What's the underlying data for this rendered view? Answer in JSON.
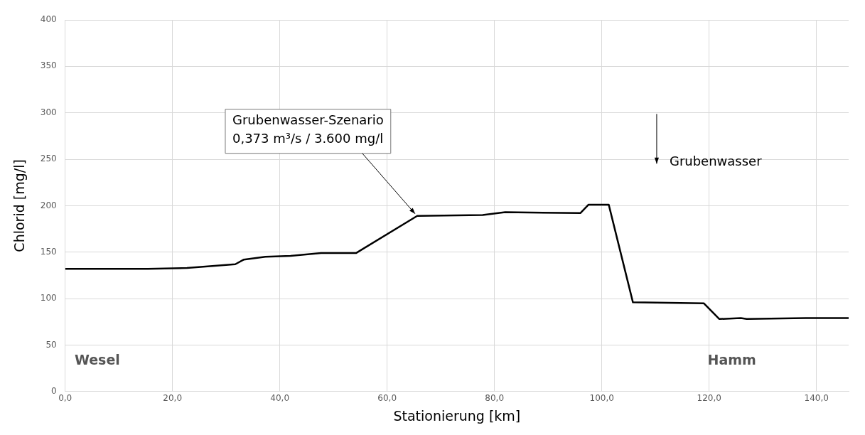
{
  "chart_data": {
    "type": "line",
    "xlabel": "Stationierung [km]",
    "ylabel": "Chlorid [mg/l]",
    "xlim": [
      0,
      146
    ],
    "xticks": [
      {
        "value": 0,
        "label": "0,0"
      },
      {
        "value": 20,
        "label": "20,0"
      },
      {
        "value": 40,
        "label": "40,0"
      },
      {
        "value": 60,
        "label": "60,0"
      },
      {
        "value": 80,
        "label": "80,0"
      },
      {
        "value": 100,
        "label": "100,0"
      },
      {
        "value": 120,
        "label": "120,0"
      },
      {
        "value": 140,
        "label": "140,0"
      }
    ],
    "ylim": [
      0,
      400
    ],
    "yticks": [
      0,
      50,
      100,
      150,
      200,
      250,
      300,
      350,
      400
    ],
    "grid": true,
    "legend": false,
    "marker": "none",
    "line_style": "solid",
    "x": [
      0,
      15.4,
      22.7,
      31.7,
      33.3,
      37.3,
      42,
      47.7,
      54.2,
      65.6,
      77.8,
      82,
      96,
      97.5,
      101.3,
      105.8,
      119,
      121.9,
      125.9,
      127,
      138,
      146
    ],
    "series": [
      {
        "color": "#000000",
        "values": [
          132,
          132,
          133,
          137,
          142,
          145,
          146,
          149,
          149,
          189,
          190,
          193,
          192,
          201,
          201,
          96,
          95,
          78,
          79,
          78,
          79,
          79
        ]
      }
    ],
    "annotations": [
      {
        "text": "Grubenwasser-Szenario\n0,373 m³/s / 3.600 mg/l",
        "x": 65.6,
        "y": 189
      },
      "Grubenwasser",
      "Wesel",
      "Hamm"
    ]
  }
}
